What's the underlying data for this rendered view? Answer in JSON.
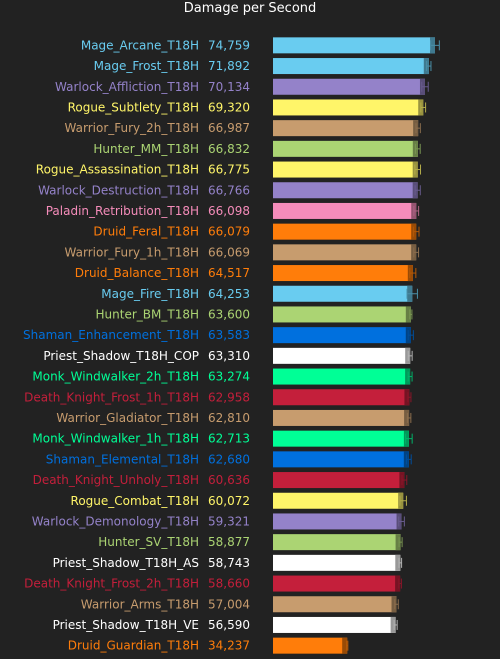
{
  "chart_data": {
    "type": "bar",
    "title": "Damage per Second",
    "orientation": "horizontal",
    "xlim": [
      0,
      80000
    ],
    "error_bars": true,
    "series": [
      {
        "label": "Mage_Arcane_T18H",
        "value": 74759,
        "display": "74,759",
        "error": 2000,
        "color": "#69ccf0"
      },
      {
        "label": "Mage_Frost_T18H",
        "value": 71892,
        "display": "71,892",
        "error": 1000,
        "color": "#69ccf0"
      },
      {
        "label": "Warlock_Affliction_T18H",
        "value": 70134,
        "display": "70,134",
        "error": 1500,
        "color": "#9482c9"
      },
      {
        "label": "Rogue_Subtlety_T18H",
        "value": 69320,
        "display": "69,320",
        "error": 1100,
        "color": "#fff569"
      },
      {
        "label": "Warrior_Fury_2h_T18H",
        "value": 66987,
        "display": "66,987",
        "error": 1000,
        "color": "#c79c6e"
      },
      {
        "label": "Hunter_MM_T18H",
        "value": 66832,
        "display": "66,832",
        "error": 1100,
        "color": "#abd473"
      },
      {
        "label": "Rogue_Assassination_T18H",
        "value": 66775,
        "display": "66,775",
        "error": 1300,
        "color": "#fff569"
      },
      {
        "label": "Warlock_Destruction_T18H",
        "value": 66766,
        "display": "66,766",
        "error": 1200,
        "color": "#9482c9"
      },
      {
        "label": "Paladin_Retribution_T18H",
        "value": 66098,
        "display": "66,098",
        "error": 1100,
        "color": "#f58cba"
      },
      {
        "label": "Druid_Feral_T18H",
        "value": 66079,
        "display": "66,079",
        "error": 1300,
        "color": "#ff7d0a"
      },
      {
        "label": "Warrior_Fury_1h_T18H",
        "value": 66069,
        "display": "66,069",
        "error": 1100,
        "color": "#c79c6e"
      },
      {
        "label": "Druid_Balance_T18H",
        "value": 64517,
        "display": "64,517",
        "error": 1400,
        "color": "#ff7d0a"
      },
      {
        "label": "Mage_Fire_T18H",
        "value": 64253,
        "display": "64,253",
        "error": 2400,
        "color": "#69ccf0"
      },
      {
        "label": "Hunter_BM_T18H",
        "value": 63600,
        "display": "63,600",
        "error": 500,
        "color": "#abd473"
      },
      {
        "label": "Shaman_Enhancement_T18H",
        "value": 63583,
        "display": "63,583",
        "error": 1200,
        "color": "#0070de"
      },
      {
        "label": "Priest_Shadow_T18H_COP",
        "value": 63310,
        "display": "63,310",
        "error": 900,
        "color": "#ffffff"
      },
      {
        "label": "Monk_Windwalker_2h_T18H",
        "value": 63274,
        "display": "63,274",
        "error": 900,
        "color": "#00ff96"
      },
      {
        "label": "Death_Knight_Frost_1h_T18H",
        "value": 62958,
        "display": "62,958",
        "error": 700,
        "color": "#c41f3b"
      },
      {
        "label": "Warrior_Gladiator_T18H",
        "value": 62810,
        "display": "62,810",
        "error": 800,
        "color": "#c79c6e"
      },
      {
        "label": "Monk_Windwalker_1h_T18H",
        "value": 62713,
        "display": "62,713",
        "error": 1500,
        "color": "#00ff96"
      },
      {
        "label": "Shaman_Elemental_T18H",
        "value": 62680,
        "display": "62,680",
        "error": 1100,
        "color": "#0070de"
      },
      {
        "label": "Death_Knight_Unholy_T18H",
        "value": 60636,
        "display": "60,636",
        "error": 1100,
        "color": "#c41f3b"
      },
      {
        "label": "Rogue_Combat_T18H",
        "value": 60072,
        "display": "60,072",
        "error": 1500,
        "color": "#fff569"
      },
      {
        "label": "Warlock_Demonology_T18H",
        "value": 59321,
        "display": "59,321",
        "error": 1300,
        "color": "#9482c9"
      },
      {
        "label": "Hunter_SV_T18H",
        "value": 58877,
        "display": "58,877",
        "error": 700,
        "color": "#abd473"
      },
      {
        "label": "Priest_Shadow_T18H_AS",
        "value": 58743,
        "display": "58,743",
        "error": 600,
        "color": "#ffffff"
      },
      {
        "label": "Death_Knight_Frost_2h_T18H",
        "value": 58660,
        "display": "58,660",
        "error": 600,
        "color": "#c41f3b"
      },
      {
        "label": "Warrior_Arms_T18H",
        "value": 57004,
        "display": "57,004",
        "error": 800,
        "color": "#c79c6e"
      },
      {
        "label": "Priest_Shadow_T18H_VE",
        "value": 56590,
        "display": "56,590",
        "error": 700,
        "color": "#ffffff"
      },
      {
        "label": "Druid_Guardian_T18H",
        "value": 34237,
        "display": "34,237",
        "error": 300,
        "color": "#ff7d0a"
      }
    ],
    "label_colors": {
      "Death_Knight_Frost_1h_T18H": "#c41f3b",
      "Death_Knight_Unholy_T18H": "#c41f3b",
      "Death_Knight_Frost_2h_T18H": "#c41f3b"
    }
  }
}
